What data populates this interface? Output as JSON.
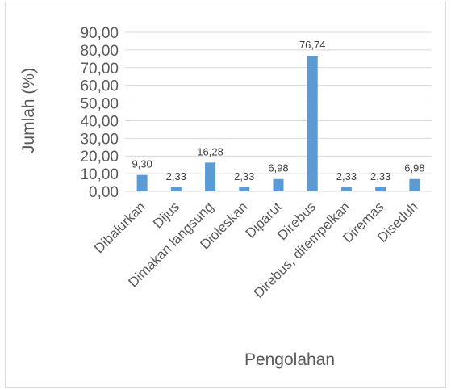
{
  "chart_data": {
    "type": "bar",
    "categories": [
      "Dibalurkan",
      "Dijus",
      "Dimakan langsung",
      "Dioleskan",
      "Diparut",
      "Direbus",
      "Direbus, ditempelkan",
      "Diremas",
      "Diseduh"
    ],
    "values": [
      9.3,
      2.33,
      16.28,
      2.33,
      6.98,
      76.74,
      2.33,
      2.33,
      6.98
    ],
    "data_labels": [
      "9,30",
      "2,33",
      "16,28",
      "2,33",
      "6,98",
      "76,74",
      "2,33",
      "2,33",
      "6,98"
    ],
    "title": "",
    "xlabel": "Pengolahan",
    "ylabel": "Jumlah (%)",
    "ylim": [
      0,
      90
    ],
    "yticks": [
      0,
      10,
      20,
      30,
      40,
      50,
      60,
      70,
      80,
      90
    ],
    "ytick_labels": [
      "0,00",
      "10,00",
      "20,00",
      "30,00",
      "40,00",
      "50,00",
      "60,00",
      "70,00",
      "80,00",
      "90,00"
    ],
    "grid": true,
    "legend": "none",
    "bar_color": "#5b9bd5"
  }
}
